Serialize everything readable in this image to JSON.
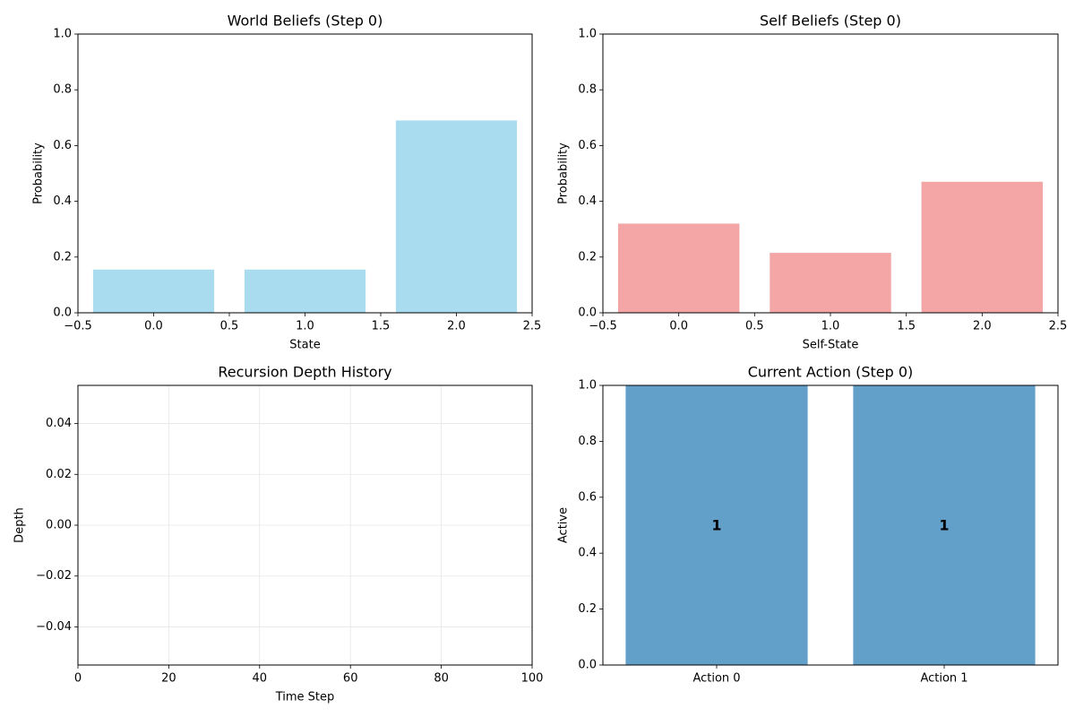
{
  "chart_data": [
    {
      "type": "bar",
      "title": "World Beliefs (Step 0)",
      "xlabel": "State",
      "ylabel": "Probability",
      "x": [
        0,
        1,
        2
      ],
      "values": [
        0.155,
        0.155,
        0.69
      ],
      "xlim": [
        -0.5,
        2.5
      ],
      "ylim": [
        0,
        1
      ],
      "xticks": [
        "−0.5",
        "0.0",
        "0.5",
        "1.0",
        "1.5",
        "2.0",
        "2.5"
      ],
      "yticks": [
        "0.0",
        "0.2",
        "0.4",
        "0.6",
        "0.8",
        "1.0"
      ],
      "color": "#a8dcee",
      "grid": false
    },
    {
      "type": "bar",
      "title": "Self Beliefs (Step 0)",
      "xlabel": "Self-State",
      "ylabel": "Probability",
      "x": [
        0,
        1,
        2
      ],
      "values": [
        0.32,
        0.215,
        0.47
      ],
      "xlim": [
        -0.5,
        2.5
      ],
      "ylim": [
        0,
        1
      ],
      "xticks": [
        "−0.5",
        "0.0",
        "0.5",
        "1.0",
        "1.5",
        "2.0",
        "2.5"
      ],
      "yticks": [
        "0.0",
        "0.2",
        "0.4",
        "0.6",
        "0.8",
        "1.0"
      ],
      "color": "#f4a6a6",
      "grid": false
    },
    {
      "type": "line",
      "title": "Recursion Depth History",
      "xlabel": "Time Step",
      "ylabel": "Depth",
      "series": [],
      "xlim": [
        0,
        100
      ],
      "ylim": [
        -0.055,
        0.055
      ],
      "xticks": [
        "0",
        "20",
        "40",
        "60",
        "80",
        "100"
      ],
      "yticks": [
        "−0.04",
        "−0.02",
        "0.00",
        "0.02",
        "0.04"
      ],
      "grid": true
    },
    {
      "type": "bar",
      "title": "Current Action (Step 0)",
      "xlabel": "",
      "ylabel": "Active",
      "categories": [
        "Action 0",
        "Action 1"
      ],
      "values": [
        1,
        1
      ],
      "data_labels": [
        "1",
        "1"
      ],
      "ylim": [
        0,
        1
      ],
      "yticks": [
        "0.0",
        "0.2",
        "0.4",
        "0.6",
        "0.8",
        "1.0"
      ],
      "color": "#62a0ca",
      "grid": false
    }
  ]
}
